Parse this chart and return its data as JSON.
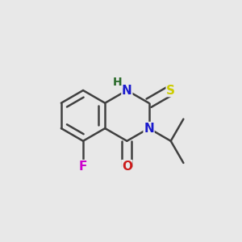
{
  "background_color": "#e8e8e8",
  "bond_color": "#404040",
  "bond_width": 1.8,
  "atom_colors": {
    "N": "#1a1acc",
    "O": "#cc1a1a",
    "S": "#cccc00",
    "F": "#cc00cc",
    "H": "#2a6a2a",
    "C": "#404040"
  },
  "font_size": 11,
  "dbo": 0.018
}
